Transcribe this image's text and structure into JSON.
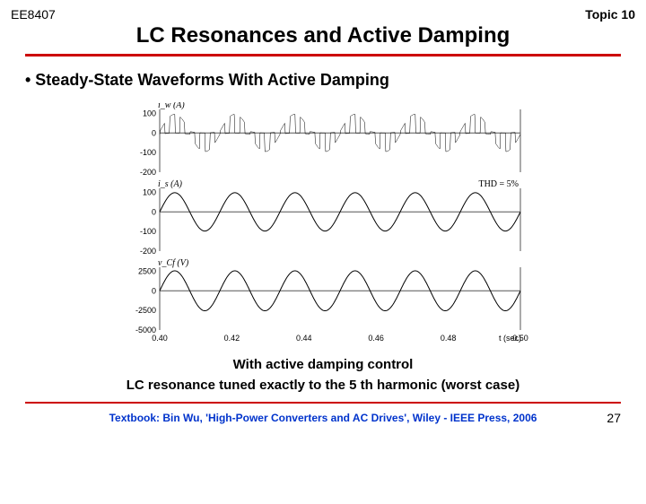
{
  "header": {
    "course": "EE8407",
    "topic": "Topic 10",
    "title": "LC Resonances and Active Damping"
  },
  "bullet": "• Steady-State Waveforms With Active Damping",
  "plots": {
    "x_start": 0.4,
    "x_end": 0.5,
    "x_ticks": [
      0.4,
      0.42,
      0.44,
      0.46,
      0.48,
      0.5
    ],
    "x_label_right": "t (sec)",
    "panel1": {
      "label": "i_w (A)",
      "yticks": [
        100,
        0,
        -100,
        -200
      ],
      "line_color": "#000000",
      "envelope_amp": 95,
      "envelope_cycles": 6,
      "hf_bursts": 36
    },
    "panel2": {
      "label": "i_s (A)",
      "thd_label": "THD = 5%",
      "yticks": [
        100,
        0,
        -100,
        -200
      ],
      "line_color": "#000000",
      "amp": 98,
      "cycles": 6
    },
    "panel3": {
      "label": "v_Cf (V)",
      "yticks": [
        2500,
        0,
        -2500,
        -5000
      ],
      "line_color": "#000000",
      "amp": 2550,
      "cycles": 6
    },
    "axis_color": "#555555",
    "background": "#ffffff"
  },
  "captions": {
    "line1": "With active damping control",
    "line2": "LC resonance tuned exactly to the 5 th harmonic (worst case)"
  },
  "footer": {
    "textbook": "Textbook: Bin Wu, 'High-Power Converters and AC Drives', Wiley - IEEE Press, 2006",
    "page": "27"
  },
  "colors": {
    "rule": "#cc0000",
    "link": "#0033cc"
  }
}
